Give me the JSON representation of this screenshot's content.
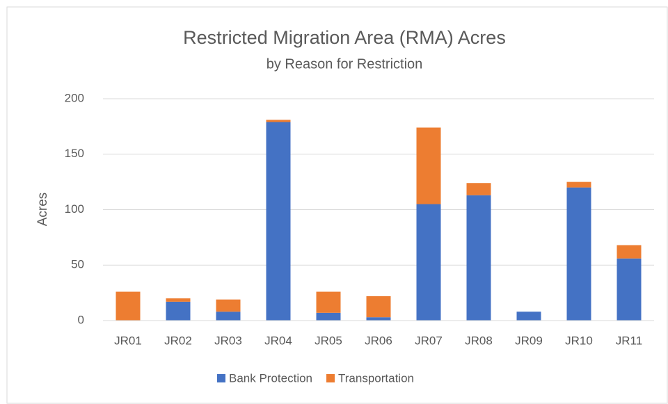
{
  "chart_data": {
    "type": "stacked_bar",
    "title": "Restricted Migration Area (RMA) Acres",
    "subtitle": "by Reason for Restriction",
    "y_label": "Acres",
    "categories": [
      "JR01",
      "JR02",
      "JR03",
      "JR04",
      "JR05",
      "JR06",
      "JR07",
      "JR08",
      "JR09",
      "JR10",
      "JR11"
    ],
    "series": [
      {
        "name": "Bank Protection",
        "color": "#4472c4",
        "values": [
          0,
          17,
          8,
          179,
          7,
          3,
          105,
          113,
          8,
          120,
          56
        ]
      },
      {
        "name": "Transportation",
        "color": "#ed7d31",
        "values": [
          26,
          3,
          11,
          2,
          19,
          19,
          69,
          11,
          0,
          5,
          12
        ]
      }
    ],
    "ylim": [
      0,
      200
    ],
    "yticks": [
      0,
      50,
      100,
      150,
      200
    ],
    "grid": true,
    "legend": "bottom"
  }
}
